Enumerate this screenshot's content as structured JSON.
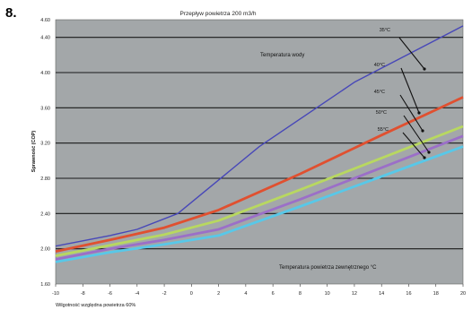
{
  "figure_number": "8.",
  "chart_data": {
    "type": "line",
    "title": "Przepływ powietrza 200 m3/h",
    "xlabel": "Wilgotność względna powietrza 60%",
    "ylabel": "Sprawność (COP)",
    "xlim": [
      -10,
      20
    ],
    "ylim": [
      1.6,
      4.6
    ],
    "x_ticks": [
      "-10",
      "-8",
      "-6",
      "-4",
      "-2",
      "0",
      "2",
      "4",
      "6",
      "8",
      "10",
      "12",
      "14",
      "16",
      "18",
      "20"
    ],
    "y_ticks": [
      "1.60",
      "2.00",
      "2.40",
      "2.80",
      "3.20",
      "3.60",
      "4.00",
      "4.40",
      "4.60"
    ],
    "grid": true,
    "background": "#a3a7a9",
    "annotations": {
      "water_temp": "Temperatura wody",
      "air_temp": "Temperatura powietrza zewnętrznego °C"
    },
    "series": [
      {
        "name": "35°C",
        "color": "#4848b8",
        "x": [
          -10,
          -6,
          -4,
          -1,
          5,
          12,
          20
        ],
        "y": [
          2.03,
          2.15,
          2.22,
          2.4,
          3.16,
          3.89,
          4.53
        ]
      },
      {
        "name": "40°C",
        "color": "#e05030",
        "x": [
          -10,
          -6,
          -2,
          2,
          8,
          14,
          20
        ],
        "y": [
          1.97,
          2.1,
          2.24,
          2.44,
          2.85,
          3.29,
          3.72
        ]
      },
      {
        "name": "45°C",
        "color": "#b8d860",
        "x": [
          -10,
          -6,
          -2,
          2,
          8,
          14,
          20
        ],
        "y": [
          1.92,
          2.04,
          2.16,
          2.32,
          2.67,
          3.03,
          3.39
        ]
      },
      {
        "name": "50°C",
        "color": "#9b6fc8",
        "x": [
          -10,
          -6,
          -2,
          2,
          8,
          14,
          20
        ],
        "y": [
          1.88,
          2.0,
          2.1,
          2.22,
          2.56,
          2.92,
          3.28
        ]
      },
      {
        "name": "55°C",
        "color": "#58c8e8",
        "x": [
          -10,
          -6,
          -2,
          2,
          8,
          14,
          20
        ],
        "y": [
          1.85,
          1.96,
          2.05,
          2.15,
          2.48,
          2.82,
          3.16
        ]
      }
    ]
  }
}
